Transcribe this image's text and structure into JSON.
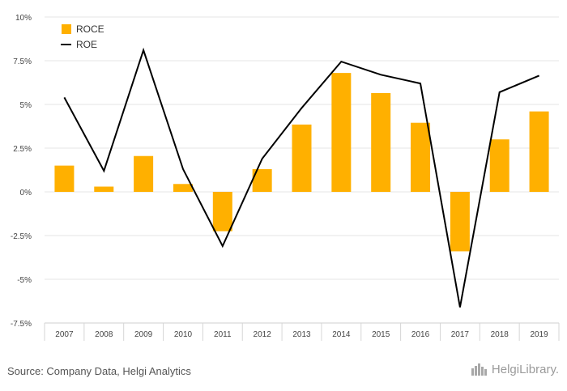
{
  "chart_data": {
    "type": "bar",
    "categories": [
      "2007",
      "2008",
      "2009",
      "2010",
      "2011",
      "2012",
      "2013",
      "2014",
      "2015",
      "2016",
      "2017",
      "2018",
      "2019"
    ],
    "series": [
      {
        "name": "ROCE",
        "type": "bar",
        "color": "#FFB000",
        "values": [
          1.5,
          0.3,
          2.05,
          0.45,
          -2.25,
          1.3,
          3.85,
          6.8,
          5.65,
          3.95,
          -3.4,
          3.0,
          4.6
        ]
      },
      {
        "name": "ROE",
        "type": "line",
        "color": "#000000",
        "values": [
          5.4,
          1.2,
          8.1,
          1.3,
          -3.1,
          1.9,
          4.8,
          7.45,
          6.7,
          6.2,
          -6.6,
          5.7,
          6.65
        ]
      }
    ],
    "ylim": [
      -7.5,
      10
    ],
    "yticks": [
      "10%",
      "7.5%",
      "5%",
      "2.5%",
      "0%",
      "-2.5%",
      "-5%",
      "-7.5%"
    ],
    "ytick_values": [
      10,
      7.5,
      5,
      2.5,
      0,
      -2.5,
      -5,
      -7.5
    ],
    "grid": true,
    "legend_position": "top-left",
    "title": "",
    "xlabel": "",
    "ylabel": ""
  },
  "footer": {
    "source": "Source: Company Data, Helgi Analytics",
    "brand": "HelgiLibrary."
  }
}
